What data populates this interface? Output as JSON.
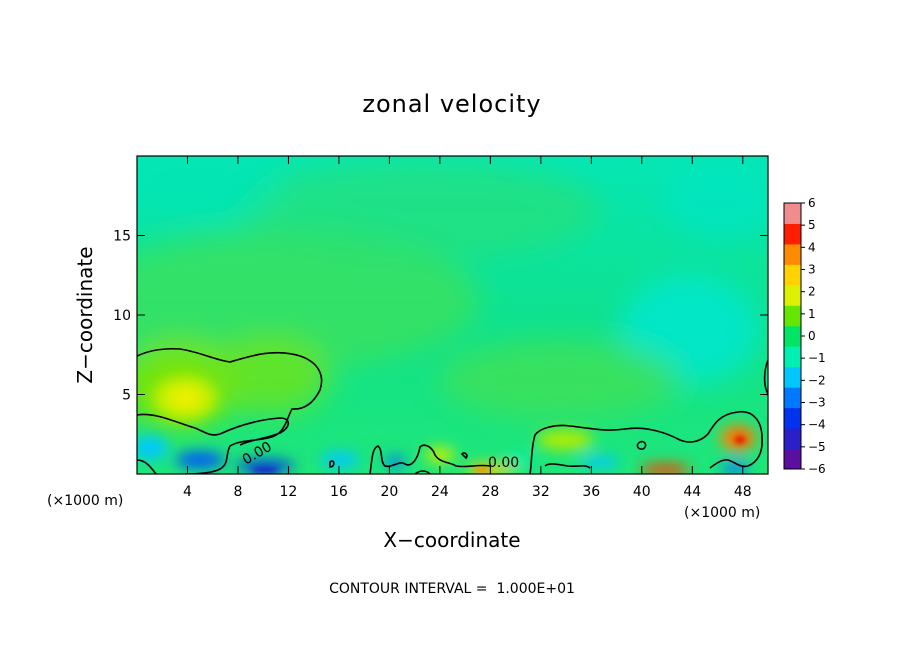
{
  "chart_data": {
    "type": "heatmap",
    "title": "zonal velocity",
    "xlabel": "X−coordinate",
    "ylabel": "Z−coordinate",
    "x_unit": "(×1000 m)",
    "x_unit_right": "(×1000 m)",
    "xlim": [
      0,
      50
    ],
    "ylim": [
      0,
      20
    ],
    "x_ticks": [
      4,
      8,
      12,
      16,
      20,
      24,
      28,
      32,
      36,
      40,
      44,
      48
    ],
    "x_tick_labels": [
      "4",
      "8",
      "12",
      "16",
      "20",
      "24",
      "28",
      "32",
      "36",
      "40",
      "44",
      "48"
    ],
    "y_ticks": [
      5,
      10,
      15
    ],
    "y_tick_labels": [
      "5",
      "10",
      "15"
    ],
    "colorbar": {
      "min": -6,
      "max": 6,
      "tick_values": [
        6,
        5,
        4,
        3,
        2,
        1,
        0,
        -1,
        -2,
        -3,
        -4,
        -5,
        -6
      ],
      "tick_labels": [
        "6",
        "5",
        "4",
        "3",
        "2",
        "1",
        "0",
        "−1",
        "−2",
        "−3",
        "−4",
        "−5",
        "−6"
      ],
      "colors": [
        "#5a0fa0",
        "#2a1fc8",
        "#0032f0",
        "#0078ff",
        "#00c8ff",
        "#00f0b4",
        "#00e664",
        "#64e600",
        "#dcf000",
        "#ffd200",
        "#ff8c00",
        "#ff1e00",
        "#f08c8c"
      ]
    },
    "contour_labels": [
      "0.00",
      "0.00"
    ],
    "contour_label_x": [
      10,
      29
    ],
    "contour_label_y": [
      1.8,
      0.8
    ],
    "contour_interval_text": "CONTOUR INTERVAL =  1.000E+01",
    "features": [
      {
        "x": 4,
        "z": 4.8,
        "value": 1.6
      },
      {
        "x": 47.5,
        "z": 2.2,
        "value": 4.5
      },
      {
        "x": 33,
        "z": 2.1,
        "value": 1.5
      },
      {
        "x": 29,
        "z": 0.25,
        "value": 3.2
      },
      {
        "x": 42,
        "z": 0.3,
        "value": 4.0
      },
      {
        "x": 46,
        "z": 0.5,
        "value": -3.5
      },
      {
        "x": 1.5,
        "z": 1.5,
        "value": -2.5
      },
      {
        "x": 10,
        "z": 1.0,
        "value": -3.5
      },
      {
        "x": 21,
        "z": 0.8,
        "value": -2.5
      },
      {
        "x": 43,
        "z": 8.5,
        "value": -1.5
      },
      {
        "x": 10,
        "z": 11,
        "value": 0.5
      }
    ]
  }
}
